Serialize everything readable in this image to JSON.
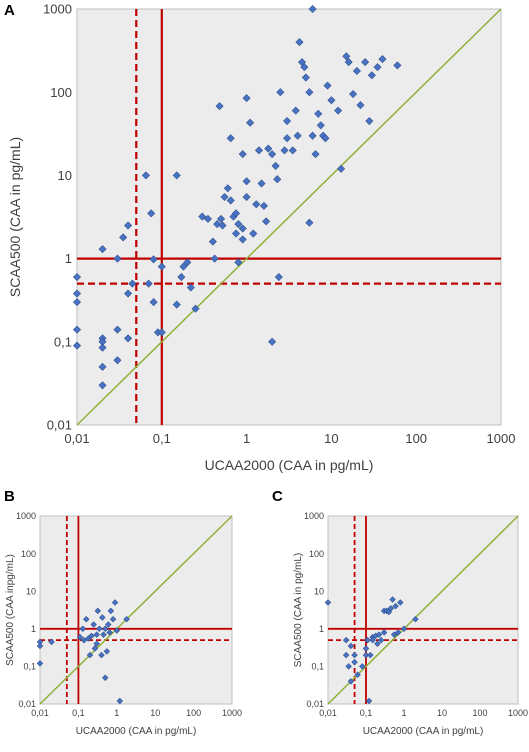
{
  "chart_data": [
    {
      "panel": "A",
      "type": "scatter",
      "xlabel": "UCAA2000 (CAA in pg/mL)",
      "ylabel": "SCAA500 (CAA in pg/mL)",
      "xscale": "log",
      "yscale": "log",
      "xlim": [
        0.01,
        1000
      ],
      "ylim": [
        0.01,
        1000
      ],
      "xticks": [
        "0,01",
        "0,1",
        "1",
        "10",
        "100",
        "1000"
      ],
      "yticks": [
        "0,01",
        "0,1",
        "1",
        "10",
        "100",
        "1000"
      ],
      "grid": false,
      "background": "#ececec",
      "marker_color": "#4a72c4",
      "reference_lines": [
        {
          "type": "vertical",
          "x": 0.1,
          "style": "solid",
          "color": "#c00000"
        },
        {
          "type": "vertical",
          "x": 0.05,
          "style": "dashed",
          "color": "#c00000"
        },
        {
          "type": "horizontal",
          "y": 1,
          "style": "solid",
          "color": "#c00000"
        },
        {
          "type": "horizontal",
          "y": 0.5,
          "style": "dashed",
          "color": "#c00000"
        },
        {
          "type": "identity",
          "color": "#8fb13a"
        }
      ],
      "points": [
        [
          0.01,
          0.6
        ],
        [
          0.01,
          0.38
        ],
        [
          0.01,
          0.3
        ],
        [
          0.01,
          0.14
        ],
        [
          0.01,
          0.09
        ],
        [
          0.02,
          1.3
        ],
        [
          0.02,
          0.11
        ],
        [
          0.02,
          0.1
        ],
        [
          0.02,
          0.085
        ],
        [
          0.02,
          0.05
        ],
        [
          0.02,
          0.03
        ],
        [
          0.03,
          1.0
        ],
        [
          0.03,
          0.14
        ],
        [
          0.03,
          0.06
        ],
        [
          0.035,
          1.8
        ],
        [
          0.04,
          2.5
        ],
        [
          0.04,
          0.38
        ],
        [
          0.04,
          0.11
        ],
        [
          0.045,
          0.5
        ],
        [
          0.065,
          10.0
        ],
        [
          0.07,
          0.5
        ],
        [
          0.075,
          3.5
        ],
        [
          0.08,
          0.98
        ],
        [
          0.08,
          0.3
        ],
        [
          0.09,
          0.13
        ],
        [
          0.1,
          0.8
        ],
        [
          0.1,
          0.13
        ],
        [
          0.15,
          10.0
        ],
        [
          0.15,
          0.28
        ],
        [
          0.17,
          0.6
        ],
        [
          0.18,
          0.8
        ],
        [
          0.2,
          0.9
        ],
        [
          0.22,
          0.45
        ],
        [
          0.25,
          0.25
        ],
        [
          0.3,
          3.2
        ],
        [
          0.35,
          3.0
        ],
        [
          0.4,
          1.6
        ],
        [
          0.42,
          1.0
        ],
        [
          0.45,
          2.6
        ],
        [
          0.48,
          68.0
        ],
        [
          0.5,
          3.0
        ],
        [
          0.52,
          2.5
        ],
        [
          0.55,
          5.5
        ],
        [
          0.6,
          7.0
        ],
        [
          0.65,
          28.0
        ],
        [
          0.65,
          5.0
        ],
        [
          0.7,
          3.2
        ],
        [
          0.75,
          3.5
        ],
        [
          0.75,
          2.0
        ],
        [
          0.8,
          2.6
        ],
        [
          0.8,
          0.9
        ],
        [
          0.9,
          18.0
        ],
        [
          0.9,
          1.7
        ],
        [
          0.9,
          2.3
        ],
        [
          1.0,
          85.0
        ],
        [
          1.0,
          8.5
        ],
        [
          1.0,
          5.5
        ],
        [
          1.1,
          43.0
        ],
        [
          1.2,
          2.0
        ],
        [
          1.3,
          4.5
        ],
        [
          1.4,
          20.0
        ],
        [
          1.5,
          8.0
        ],
        [
          1.6,
          4.3
        ],
        [
          1.7,
          2.8
        ],
        [
          1.8,
          21.0
        ],
        [
          2.0,
          18.0
        ],
        [
          2.0,
          0.1
        ],
        [
          2.2,
          13.0
        ],
        [
          2.3,
          9.0
        ],
        [
          2.4,
          0.6
        ],
        [
          2.5,
          100.0
        ],
        [
          2.8,
          20.0
        ],
        [
          3.0,
          45.0
        ],
        [
          3.0,
          28.0
        ],
        [
          3.5,
          20.0
        ],
        [
          3.8,
          60.0
        ],
        [
          4.0,
          30.0
        ],
        [
          4.2,
          400.0
        ],
        [
          4.5,
          230.0
        ],
        [
          4.8,
          200.0
        ],
        [
          5.0,
          150.0
        ],
        [
          5.5,
          100.0
        ],
        [
          5.5,
          2.7
        ],
        [
          6.0,
          1000.0
        ],
        [
          6.0,
          30.0
        ],
        [
          6.5,
          18.0
        ],
        [
          7.0,
          55.0
        ],
        [
          7.5,
          40.0
        ],
        [
          8.0,
          30.0
        ],
        [
          8.5,
          28.0
        ],
        [
          9.0,
          120.0
        ],
        [
          10.0,
          80.0
        ],
        [
          12.0,
          60.0
        ],
        [
          13.0,
          12.0
        ],
        [
          15.0,
          270.0
        ],
        [
          16.0,
          230.0
        ],
        [
          18.0,
          95.0
        ],
        [
          20.0,
          180.0
        ],
        [
          22.0,
          70.0
        ],
        [
          25.0,
          230.0
        ],
        [
          28.0,
          45.0
        ],
        [
          30.0,
          160.0
        ],
        [
          35.0,
          200.0
        ],
        [
          40.0,
          250.0
        ],
        [
          60.0,
          210.0
        ]
      ]
    },
    {
      "panel": "B",
      "type": "scatter",
      "xlabel": "UCAA2000 (CAA in pg/mL)",
      "ylabel": "SCAA500 (CAA inpg/mL)",
      "xscale": "log",
      "yscale": "log",
      "xlim": [
        0.01,
        1000
      ],
      "ylim": [
        0.01,
        1000
      ],
      "xticks": [
        "0,01",
        "0,1",
        "1",
        "10",
        "100",
        "1000"
      ],
      "yticks": [
        "0,01",
        "0,1",
        "1",
        "10",
        "100",
        "1000"
      ],
      "grid": false,
      "background": "#ececec",
      "marker_color": "#4a72c4",
      "reference_lines": [
        {
          "type": "vertical",
          "x": 0.1,
          "style": "solid",
          "color": "#c00000"
        },
        {
          "type": "vertical",
          "x": 0.05,
          "style": "dashed",
          "color": "#c00000"
        },
        {
          "type": "horizontal",
          "y": 1,
          "style": "solid",
          "color": "#c00000"
        },
        {
          "type": "horizontal",
          "y": 0.5,
          "style": "dashed",
          "color": "#c00000"
        },
        {
          "type": "identity",
          "color": "#8fb13a"
        }
      ],
      "points": [
        [
          0.01,
          0.45
        ],
        [
          0.01,
          0.35
        ],
        [
          0.01,
          0.12
        ],
        [
          0.02,
          0.45
        ],
        [
          0.11,
          0.6
        ],
        [
          0.13,
          1.0
        ],
        [
          0.14,
          0.5
        ],
        [
          0.16,
          1.8
        ],
        [
          0.18,
          0.55
        ],
        [
          0.2,
          0.2
        ],
        [
          0.22,
          0.65
        ],
        [
          0.25,
          1.3
        ],
        [
          0.27,
          0.3
        ],
        [
          0.3,
          0.7
        ],
        [
          0.3,
          0.4
        ],
        [
          0.32,
          3.0
        ],
        [
          0.35,
          1.0
        ],
        [
          0.4,
          0.2
        ],
        [
          0.42,
          2.0
        ],
        [
          0.45,
          0.7
        ],
        [
          0.5,
          0.05
        ],
        [
          0.5,
          1.0
        ],
        [
          0.55,
          0.25
        ],
        [
          0.6,
          1.3
        ],
        [
          0.65,
          0.8
        ],
        [
          0.7,
          3.0
        ],
        [
          0.8,
          1.8
        ],
        [
          0.9,
          5.0
        ],
        [
          1.0,
          0.9
        ],
        [
          1.2,
          0.012
        ],
        [
          1.8,
          1.8
        ]
      ]
    },
    {
      "panel": "C",
      "type": "scatter",
      "xlabel": "UCAA2000 (CAA in pg/mL)",
      "ylabel": "SCAA500 (CAA in pg/mL)",
      "xscale": "log",
      "yscale": "log",
      "xlim": [
        0.01,
        1000
      ],
      "ylim": [
        0.01,
        1000
      ],
      "xticks": [
        "0,01",
        "0,1",
        "1",
        "10",
        "100",
        "1000"
      ],
      "yticks": [
        "0,01",
        "0,1",
        "1",
        "10",
        "100",
        "1000"
      ],
      "grid": false,
      "background": "#ececec",
      "marker_color": "#4a72c4",
      "reference_lines": [
        {
          "type": "vertical",
          "x": 0.1,
          "style": "solid",
          "color": "#c00000"
        },
        {
          "type": "vertical",
          "x": 0.05,
          "style": "dashed",
          "color": "#c00000"
        },
        {
          "type": "horizontal",
          "y": 1,
          "style": "solid",
          "color": "#c00000"
        },
        {
          "type": "horizontal",
          "y": 0.5,
          "style": "dashed",
          "color": "#c00000"
        },
        {
          "type": "identity",
          "color": "#8fb13a"
        }
      ],
      "points": [
        [
          0.01,
          5.0
        ],
        [
          0.03,
          0.5
        ],
        [
          0.03,
          0.2
        ],
        [
          0.035,
          0.1
        ],
        [
          0.04,
          0.35
        ],
        [
          0.04,
          0.04
        ],
        [
          0.05,
          0.2
        ],
        [
          0.05,
          0.13
        ],
        [
          0.06,
          0.06
        ],
        [
          0.08,
          0.1
        ],
        [
          0.1,
          0.3
        ],
        [
          0.1,
          0.2
        ],
        [
          0.11,
          0.5
        ],
        [
          0.12,
          0.012
        ],
        [
          0.13,
          0.2
        ],
        [
          0.15,
          0.6
        ],
        [
          0.15,
          0.5
        ],
        [
          0.18,
          0.65
        ],
        [
          0.2,
          0.4
        ],
        [
          0.22,
          0.7
        ],
        [
          0.25,
          0.5
        ],
        [
          0.3,
          0.8
        ],
        [
          0.3,
          3.0
        ],
        [
          0.35,
          3.0
        ],
        [
          0.4,
          2.8
        ],
        [
          0.45,
          3.5
        ],
        [
          0.5,
          6.0
        ],
        [
          0.55,
          0.7
        ],
        [
          0.6,
          4.0
        ],
        [
          0.7,
          0.8
        ],
        [
          0.8,
          5.0
        ],
        [
          1.0,
          1.0
        ],
        [
          2.0,
          1.8
        ]
      ]
    }
  ]
}
